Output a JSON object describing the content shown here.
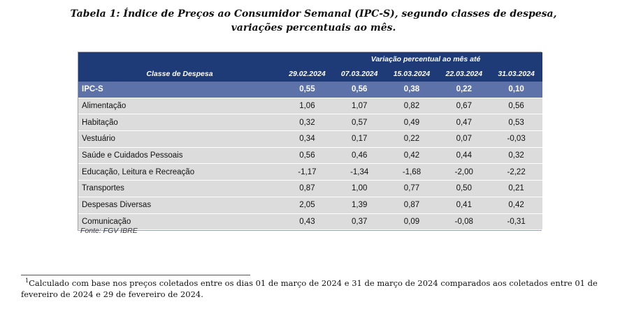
{
  "title": {
    "line1_prefix": "Tabela 1",
    "line1_rest": ": Índice de Preços ao Consumidor Semanal (IPC-S), segundo classes de despesa,",
    "line2": "variações percentuais ao mês."
  },
  "table": {
    "group_header": "Variação percentual ao mês até",
    "class_header": "Classe de Despesa",
    "dates": [
      "29.02.2024",
      "07.03.2024",
      "15.03.2024",
      "22.03.2024",
      "31.03.2024"
    ],
    "highlight_row": {
      "label": "IPC-S",
      "values": [
        "0,55",
        "0,56",
        "0,38",
        "0,22",
        "0,10"
      ]
    },
    "rows": [
      {
        "label": "Alimentação",
        "values": [
          "1,06",
          "1,07",
          "0,82",
          "0,67",
          "0,56"
        ]
      },
      {
        "label": "Habitação",
        "values": [
          "0,32",
          "0,57",
          "0,49",
          "0,47",
          "0,53"
        ]
      },
      {
        "label": "Vestuário",
        "values": [
          "0,34",
          "0,17",
          "0,22",
          "0,07",
          "-0,03"
        ]
      },
      {
        "label": "Saúde e Cuidados Pessoais",
        "values": [
          "0,56",
          "0,46",
          "0,42",
          "0,44",
          "0,32"
        ]
      },
      {
        "label": "Educação, Leitura e Recreação",
        "values": [
          "-1,17",
          "-1,34",
          "-1,68",
          "-2,00",
          "-2,22"
        ]
      },
      {
        "label": "Transportes",
        "values": [
          "0,87",
          "1,00",
          "0,77",
          "0,50",
          "0,21"
        ]
      },
      {
        "label": "Despesas Diversas",
        "values": [
          "2,05",
          "1,39",
          "0,87",
          "0,41",
          "0,42"
        ]
      },
      {
        "label": "Comunicação",
        "values": [
          "0,43",
          "0,37",
          "0,09",
          "-0,08",
          "-0,31"
        ]
      }
    ],
    "source": "Fonte: FGV IBRE"
  },
  "footnote": {
    "marker": "1",
    "text": "Calculado com base nos preços coletados entre os dias 01 de março de 2024 e 31 de março de 2024 comparados aos coletados entre 01 de fevereiro de 2024 e 29 de fevereiro de 2024."
  },
  "colors": {
    "header_bg": "#1f3b77",
    "highlight_bg": "#5d72a8",
    "row_bg": "#dcdcdc"
  }
}
